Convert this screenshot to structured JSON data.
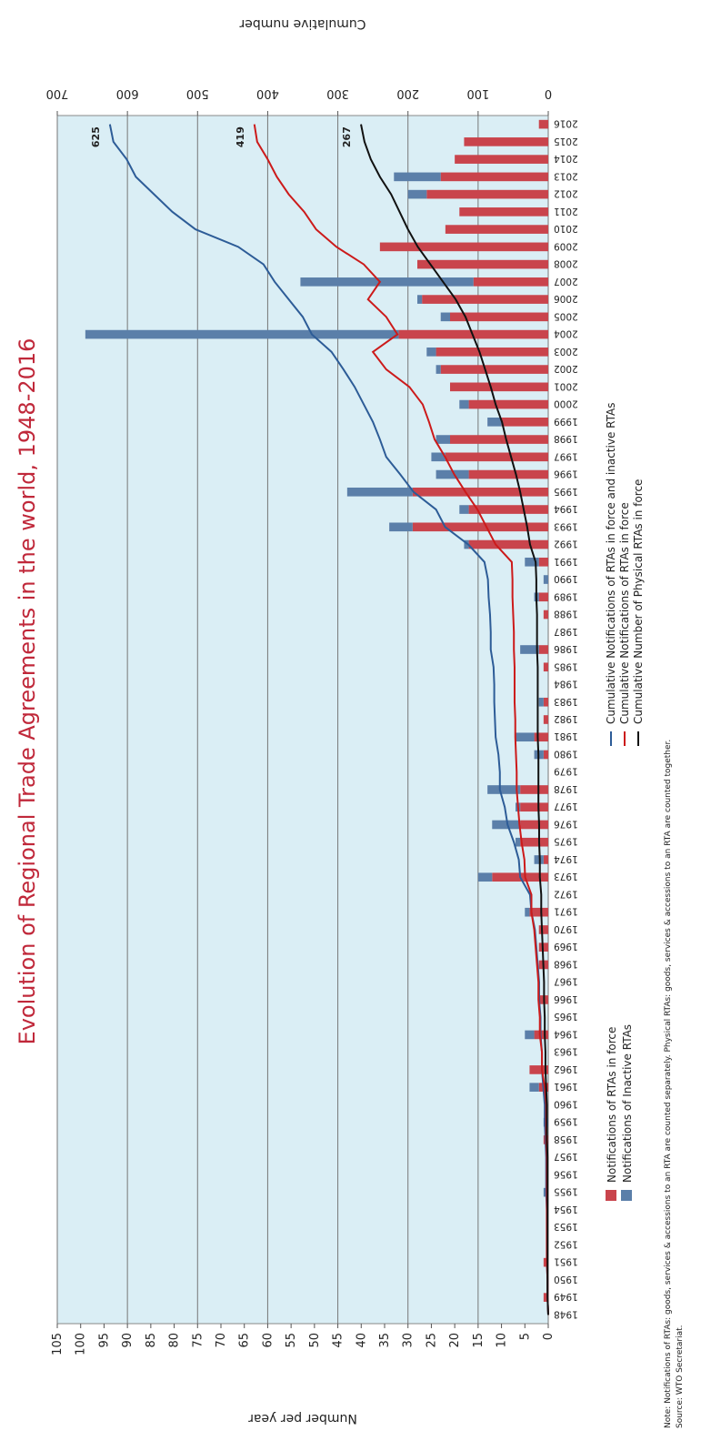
{
  "chart_data": {
    "type": "bar",
    "title": "Evolution of Regional Trade Agreements in the world, 1948-2016",
    "y_label": "Number per year",
    "y2_label": "Cumulative number",
    "note": "Note: Notifications of RTAs: goods, services & accessions to an RTA are counted separately. Physical RTAs: goods, services & accessions to an RTA are counted together.",
    "source": "Source: WTO Secretariat.",
    "categories": [
      "1948",
      "1949",
      "1950",
      "1951",
      "1952",
      "1953",
      "1954",
      "1955",
      "1956",
      "1957",
      "1958",
      "1959",
      "1960",
      "1961",
      "1962",
      "1963",
      "1964",
      "1965",
      "1966",
      "1967",
      "1968",
      "1969",
      "1970",
      "1971",
      "1972",
      "1973",
      "1974",
      "1975",
      "1976",
      "1977",
      "1978",
      "1979",
      "1980",
      "1981",
      "1982",
      "1983",
      "1984",
      "1985",
      "1986",
      "1987",
      "1988",
      "1989",
      "1990",
      "1991",
      "1992",
      "1993",
      "1994",
      "1995",
      "1996",
      "1997",
      "1998",
      "1999",
      "2000",
      "2001",
      "2002",
      "2003",
      "2004",
      "2005",
      "2006",
      "2007",
      "2008",
      "2009",
      "2010",
      "2011",
      "2012",
      "2013",
      "2014",
      "2015",
      "2016"
    ],
    "series": [
      {
        "name": "Notifications of RTAs in force",
        "type": "bar",
        "color": "#c9444c",
        "values": [
          0,
          1,
          0,
          1,
          0,
          0,
          0,
          0,
          0,
          0,
          1,
          0,
          0,
          2,
          4,
          0,
          3,
          0,
          2,
          0,
          2,
          2,
          2,
          4,
          0,
          12,
          1,
          6,
          6,
          6,
          6,
          0,
          1,
          3,
          1,
          1,
          0,
          1,
          2,
          0,
          1,
          2,
          0,
          2,
          17,
          29,
          17,
          29,
          17,
          22,
          21,
          10,
          17,
          21,
          23,
          24,
          32,
          21,
          27,
          16,
          28,
          36,
          22,
          19,
          26,
          23,
          20,
          18,
          2
        ]
      },
      {
        "name": "Notifications of Inactive RTAs",
        "type": "bar",
        "color": "#5b7fa9",
        "values": [
          0,
          0,
          0,
          0,
          0,
          0,
          0,
          1,
          0,
          0,
          0,
          1,
          0,
          2,
          0,
          0,
          2,
          0,
          0,
          0,
          0,
          0,
          0,
          1,
          0,
          3,
          2,
          1,
          6,
          1,
          7,
          0,
          2,
          4,
          0,
          1,
          0,
          0,
          4,
          0,
          0,
          1,
          1,
          3,
          1,
          5,
          2,
          14,
          7,
          3,
          3,
          3,
          2,
          0,
          1,
          2,
          67,
          2,
          1,
          37,
          0,
          0,
          0,
          0,
          4,
          10,
          0,
          0,
          0
        ]
      },
      {
        "name": "Cumulative Notifications of RTAs in force and inactive RTAs",
        "type": "line",
        "axis": "y2",
        "color": "#2d5c97",
        "values": [
          0,
          1,
          1,
          2,
          2,
          2,
          2,
          3,
          3,
          3,
          4,
          5,
          5,
          7,
          9,
          9,
          11,
          11,
          13,
          13,
          15,
          17,
          19,
          24,
          26,
          40,
          42,
          49,
          58,
          62,
          69,
          69,
          71,
          75,
          76,
          77,
          77,
          78,
          82,
          82,
          83,
          85,
          86,
          91,
          114,
          147,
          160,
          192,
          211,
          231,
          240,
          250,
          263,
          276,
          292,
          309,
          337,
          350,
          370,
          390,
          406,
          442,
          503,
          536,
          562,
          588,
          601,
          620,
          625
        ]
      },
      {
        "name": "Cumulative Notifications of RTAs in force",
        "type": "line",
        "axis": "y2",
        "color": "#cc1a1a",
        "values": [
          0,
          1,
          1,
          2,
          2,
          2,
          2,
          2,
          2,
          2,
          3,
          3,
          3,
          5,
          9,
          9,
          12,
          12,
          14,
          14,
          16,
          18,
          20,
          24,
          24,
          33,
          34,
          38,
          41,
          43,
          45,
          45,
          46,
          47,
          47,
          48,
          48,
          48,
          49,
          49,
          50,
          51,
          51,
          52,
          75,
          88,
          101,
          118,
          134,
          147,
          162,
          170,
          179,
          198,
          231,
          250,
          215,
          231,
          257,
          240,
          263,
          302,
          331,
          348,
          370,
          387,
          400,
          415,
          419
        ]
      },
      {
        "name": "Cumulative Number of Physical RTAs in force",
        "type": "line",
        "axis": "y2",
        "color": "#111111",
        "values": [
          0,
          1,
          1,
          1,
          1,
          1,
          1,
          1,
          1,
          1,
          2,
          2,
          2,
          3,
          4,
          4,
          5,
          5,
          6,
          6,
          7,
          8,
          9,
          10,
          10,
          12,
          12,
          13,
          13,
          14,
          14,
          14,
          14,
          15,
          15,
          15,
          15,
          15,
          16,
          16,
          16,
          17,
          17,
          18,
          26,
          30,
          35,
          40,
          46,
          53,
          60,
          66,
          75,
          82,
          90,
          98,
          108,
          118,
          132,
          150,
          168,
          186,
          200,
          212,
          224,
          240,
          253,
          262,
          267
        ]
      }
    ],
    "ylim": [
      0,
      105
    ],
    "yticks": [
      0,
      5,
      10,
      15,
      20,
      25,
      30,
      35,
      40,
      45,
      50,
      55,
      60,
      65,
      70,
      75,
      80,
      85,
      90,
      95,
      100,
      105
    ],
    "y2lim": [
      0,
      700
    ],
    "y2ticks": [
      0,
      100,
      200,
      300,
      400,
      500,
      600,
      700
    ],
    "grid": true,
    "title_color": "#c0283a",
    "background": "#daeef5"
  }
}
